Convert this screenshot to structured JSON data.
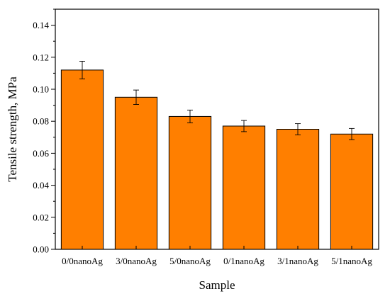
{
  "chart_data": {
    "type": "bar",
    "categories": [
      "0/0nanoAg",
      "3/0nanoAg",
      "5/0nanoAg",
      "0/1nanoAg",
      "3/1nanoAg",
      "5/1nanoAg"
    ],
    "values": [
      0.112,
      0.095,
      0.083,
      0.077,
      0.075,
      0.072
    ],
    "errors": [
      0.0055,
      0.0045,
      0.004,
      0.0035,
      0.0035,
      0.0035
    ],
    "xlabel": "Sample",
    "ylabel": "Tensile strength, MPa",
    "ylim": [
      0,
      0.15
    ],
    "yticks": [
      0.0,
      0.02,
      0.04,
      0.06,
      0.08,
      0.1,
      0.12,
      0.14
    ],
    "ytick_labels": [
      "0.00",
      "0.02",
      "0.04",
      "0.06",
      "0.08",
      "0.10",
      "0.12",
      "0.14"
    ],
    "grid": false,
    "bar_color": "#ff7f00",
    "bar_edge_color": "#000000"
  }
}
